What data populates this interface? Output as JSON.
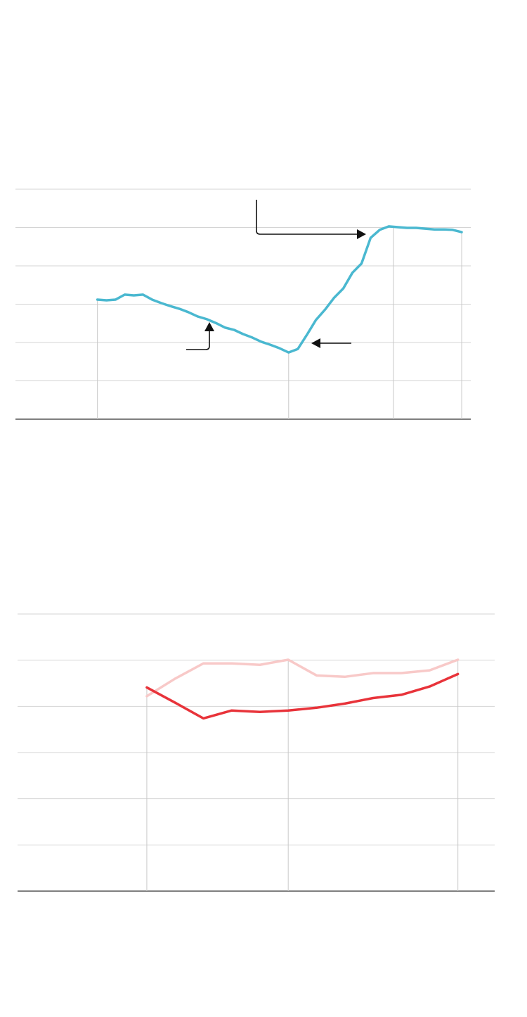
{
  "chart_data": [
    {
      "type": "line",
      "x": [
        0,
        1,
        2,
        3,
        4,
        5,
        6,
        7,
        8,
        9,
        10,
        11,
        12,
        13,
        14,
        15,
        16,
        17,
        18,
        19,
        20,
        21,
        22,
        23,
        24,
        25,
        26,
        27,
        28,
        29,
        30,
        31,
        32,
        33,
        34,
        35,
        36,
        37,
        38,
        39,
        40
      ],
      "series": [
        {
          "color": "#4ab8d0",
          "values": [
            3.12,
            3.1,
            3.12,
            3.25,
            3.23,
            3.25,
            3.12,
            3.03,
            2.95,
            2.88,
            2.79,
            2.68,
            2.61,
            2.51,
            2.39,
            2.33,
            2.22,
            2.13,
            2.02,
            1.94,
            1.85,
            1.74,
            1.83,
            2.2,
            2.59,
            2.86,
            3.17,
            3.41,
            3.82,
            4.06,
            4.73,
            4.94,
            5.03,
            5.01,
            4.99,
            4.99,
            4.97,
            4.95,
            4.95,
            4.94,
            4.88
          ]
        }
      ],
      "xlim": [
        -9,
        41
      ],
      "ylim": [
        0,
        6
      ],
      "xticks": [
        0,
        21,
        32.5,
        40
      ],
      "yticks": [
        0,
        1,
        2,
        3,
        4,
        5,
        6
      ],
      "grid": true
    },
    {
      "type": "line",
      "x": [
        0,
        1,
        2,
        3,
        4,
        5,
        6,
        7,
        8,
        9,
        10,
        11
      ],
      "series": [
        {
          "color": "#f8c9c8",
          "values": [
            4.22,
            4.6,
            4.93,
            4.93,
            4.9,
            5.01,
            4.67,
            4.64,
            4.72,
            4.72,
            4.78,
            5.01
          ]
        },
        {
          "color": "#e8333a",
          "values": [
            4.41,
            4.08,
            3.74,
            3.91,
            3.88,
            3.91,
            3.97,
            4.06,
            4.18,
            4.25,
            4.43,
            4.7
          ]
        }
      ],
      "xlim": [
        -4.57,
        12.3
      ],
      "ylim": [
        0,
        6
      ],
      "xticks": [
        0,
        5,
        11
      ],
      "yticks": [
        0,
        1,
        2,
        3,
        4,
        5,
        6
      ],
      "grid": true
    }
  ]
}
